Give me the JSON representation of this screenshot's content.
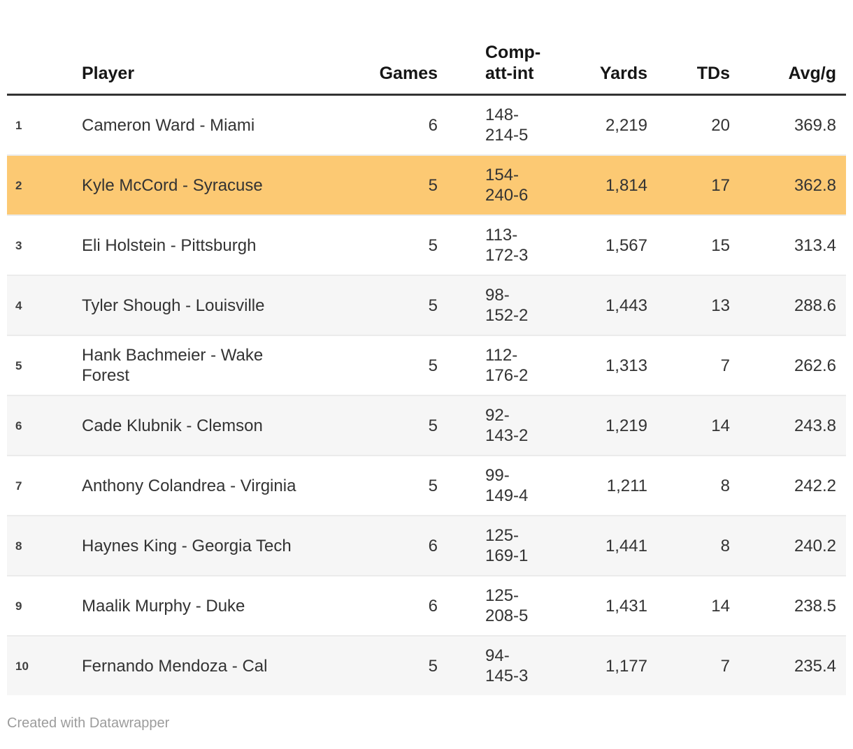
{
  "chart_data": {
    "type": "table",
    "columns": [
      {
        "key": "rank",
        "label": ""
      },
      {
        "key": "player",
        "label": "Player"
      },
      {
        "key": "games",
        "label": "Games"
      },
      {
        "key": "comp",
        "label": "Comp-att-int"
      },
      {
        "key": "yards",
        "label": "Yards"
      },
      {
        "key": "tds",
        "label": "TDs"
      },
      {
        "key": "avg",
        "label": "Avg/g"
      }
    ],
    "rows": [
      {
        "rank": "1",
        "player": "Cameron Ward - Miami",
        "games": "6",
        "comp": "148-214-5",
        "yards": "2,219",
        "tds": "20",
        "avg": "369.8",
        "highlight": false
      },
      {
        "rank": "2",
        "player": "Kyle McCord - Syracuse",
        "games": "5",
        "comp": "154-240-6",
        "yards": "1,814",
        "tds": "17",
        "avg": "362.8",
        "highlight": true
      },
      {
        "rank": "3",
        "player": "Eli Holstein - Pittsburgh",
        "games": "5",
        "comp": "113-172-3",
        "yards": "1,567",
        "tds": "15",
        "avg": "313.4",
        "highlight": false
      },
      {
        "rank": "4",
        "player": "Tyler Shough - Louisville",
        "games": "5",
        "comp": "98-152-2",
        "yards": "1,443",
        "tds": "13",
        "avg": "288.6",
        "highlight": false
      },
      {
        "rank": "5",
        "player": "Hank Bachmeier - Wake Forest",
        "games": "5",
        "comp": "112-176-2",
        "yards": "1,313",
        "tds": "7",
        "avg": "262.6",
        "highlight": false
      },
      {
        "rank": "6",
        "player": "Cade Klubnik - Clemson",
        "games": "5",
        "comp": "92-143-2",
        "yards": "1,219",
        "tds": "14",
        "avg": "243.8",
        "highlight": false
      },
      {
        "rank": "7",
        "player": "Anthony Colandrea - Virginia",
        "games": "5",
        "comp": "99-149-4",
        "yards": "1,211",
        "tds": "8",
        "avg": "242.2",
        "highlight": false
      },
      {
        "rank": "8",
        "player": "Haynes King - Georgia Tech",
        "games": "6",
        "comp": "125-169-1",
        "yards": "1,441",
        "tds": "8",
        "avg": "240.2",
        "highlight": false
      },
      {
        "rank": "9",
        "player": "Maalik Murphy - Duke",
        "games": "6",
        "comp": "125-208-5",
        "yards": "1,431",
        "tds": "14",
        "avg": "238.5",
        "highlight": false
      },
      {
        "rank": "10",
        "player": "Fernando Mendoza - Cal",
        "games": "5",
        "comp": "94-145-3",
        "yards": "1,177",
        "tds": "7",
        "avg": "235.4",
        "highlight": false
      }
    ],
    "layout_hints": {
      "striped": true,
      "stripe_on_even_rows": true,
      "highlighted_row_rank": "2"
    }
  },
  "colors": {
    "highlight": "#fcc973",
    "stripe": "#f6f6f6",
    "separator": "#ebebeb",
    "header_border": "#333333",
    "text": "#333333",
    "footer_text": "#9c9c9c"
  },
  "footer": {
    "credit": "Created with Datawrapper"
  }
}
